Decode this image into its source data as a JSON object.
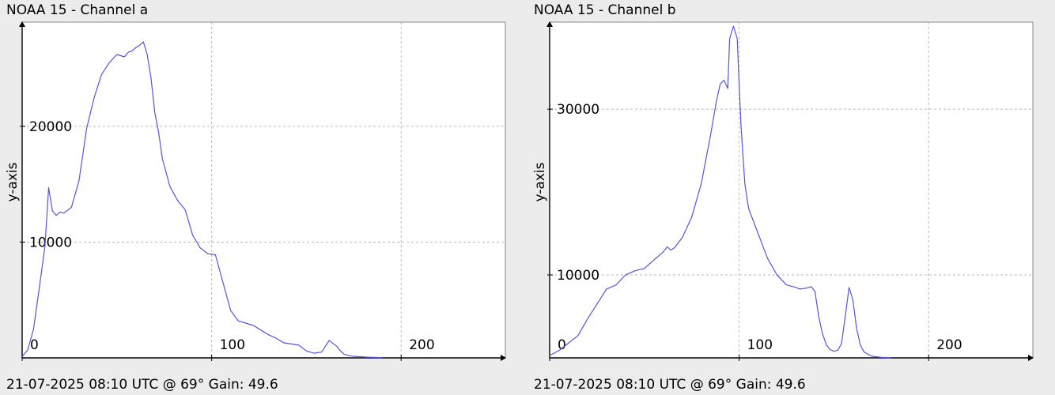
{
  "panels": [
    {
      "title": "NOAA 15 - Channel a",
      "footer": "21-07-2025 08:10 UTC @ 69° Gain: 49.6",
      "chart_data": {
        "type": "line",
        "ylabel": "y-axis",
        "xlim": [
          0,
          255
        ],
        "ylim": [
          0,
          29000
        ],
        "x_ticks": [
          0,
          100,
          200
        ],
        "y_ticks": [
          10000,
          20000
        ],
        "grid": true,
        "color": "#5555dd",
        "x": [
          0,
          3,
          6,
          9,
          12,
          14,
          16,
          18,
          20,
          22,
          26,
          30,
          34,
          38,
          42,
          46,
          50,
          54,
          56,
          58,
          60,
          62,
          64,
          66,
          68,
          70,
          72,
          74,
          78,
          82,
          86,
          90,
          94,
          98,
          102,
          106,
          110,
          114,
          118,
          122,
          126,
          130,
          134,
          138,
          142,
          146,
          150,
          154,
          158,
          162,
          166,
          168,
          170,
          174,
          178,
          182,
          186,
          190
        ],
        "values": [
          100,
          700,
          2500,
          6000,
          9600,
          14700,
          12700,
          12300,
          12600,
          12500,
          13000,
          15300,
          19800,
          22500,
          24500,
          25500,
          26200,
          26000,
          26400,
          26500,
          26800,
          27000,
          27300,
          26200,
          24200,
          21200,
          19500,
          17200,
          14800,
          13600,
          12800,
          10600,
          9500,
          9000,
          8900,
          6500,
          4100,
          3200,
          3000,
          2800,
          2400,
          2000,
          1700,
          1300,
          1200,
          1100,
          600,
          400,
          500,
          1500,
          1000,
          600,
          300,
          150,
          100,
          60,
          40,
          20
        ]
      }
    },
    {
      "title": "NOAA 15 - Channel b",
      "footer": "21-07-2025 08:10 UTC @ 69° Gain: 49.6",
      "chart_data": {
        "type": "line",
        "ylabel": "y-axis",
        "xlim": [
          0,
          255
        ],
        "ylim": [
          0,
          40500
        ],
        "x_ticks": [
          0,
          100,
          200
        ],
        "y_ticks": [
          10000,
          30000
        ],
        "grid": true,
        "color": "#5555dd",
        "x": [
          0,
          5,
          10,
          15,
          20,
          25,
          30,
          35,
          40,
          45,
          50,
          55,
          60,
          62,
          64,
          66,
          70,
          75,
          80,
          85,
          88,
          90,
          92,
          94,
          95,
          97,
          99,
          100,
          101,
          103,
          105,
          110,
          115,
          120,
          125,
          130,
          132,
          135,
          138,
          140,
          142,
          144,
          146,
          148,
          150,
          152,
          154,
          156,
          158,
          160,
          162,
          164,
          166,
          170,
          175,
          180
        ],
        "values": [
          300,
          900,
          1800,
          2700,
          4700,
          6500,
          8300,
          8800,
          10000,
          10500,
          10800,
          11800,
          12800,
          13400,
          13000,
          13300,
          14500,
          17000,
          21000,
          27000,
          31000,
          33000,
          33500,
          32500,
          38500,
          40000,
          38500,
          33000,
          28000,
          21000,
          18000,
          15000,
          12000,
          10000,
          8800,
          8500,
          8300,
          8400,
          8600,
          8000,
          5000,
          2900,
          1600,
          1000,
          800,
          900,
          1700,
          5000,
          8500,
          7000,
          3500,
          1500,
          700,
          200,
          60,
          20
        ]
      }
    }
  ]
}
